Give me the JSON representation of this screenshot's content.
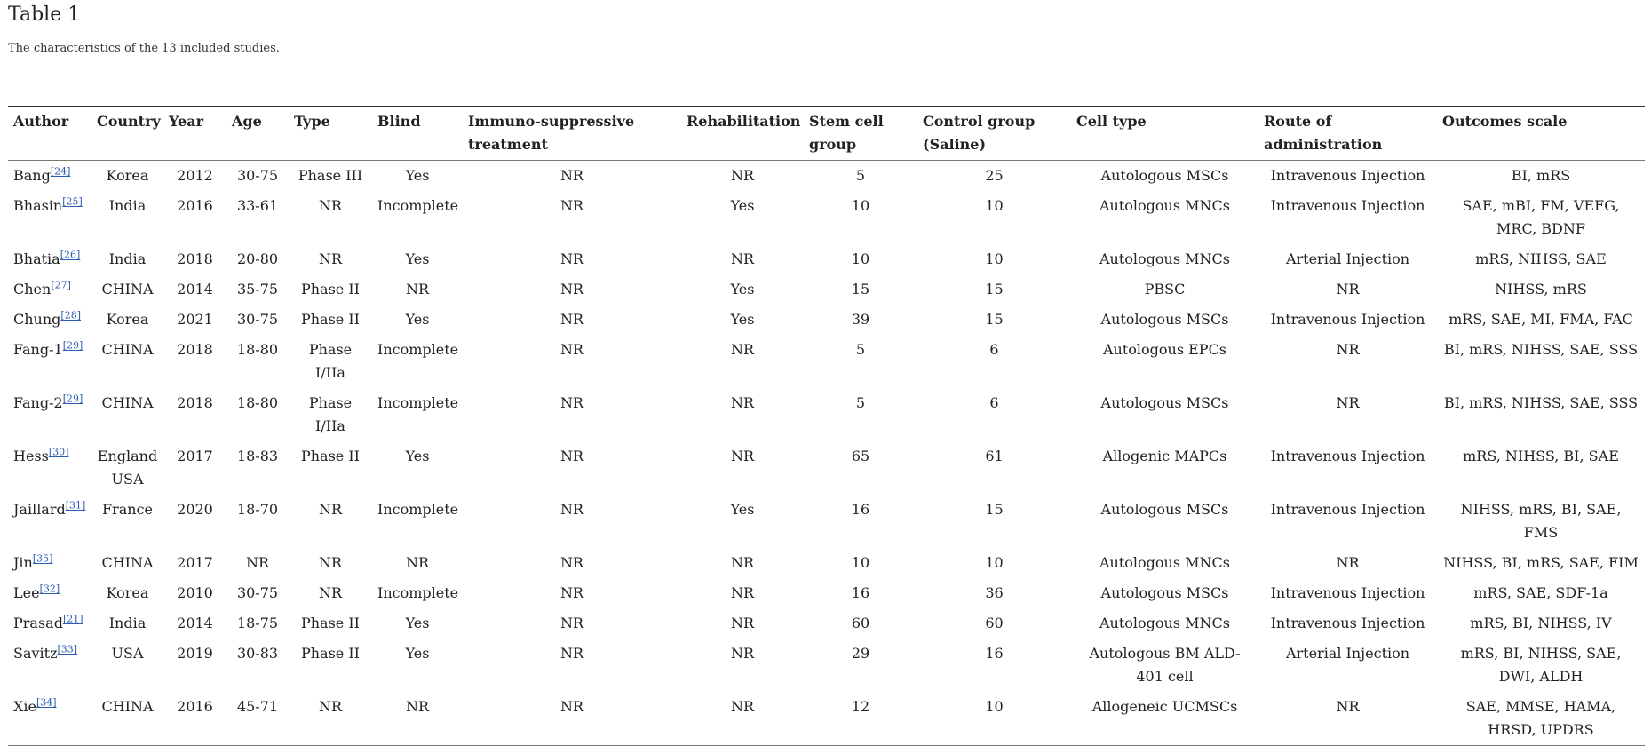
{
  "header": {
    "title": "Table 1",
    "caption": "The characteristics of the 13 included studies."
  },
  "table": {
    "columns": [
      "Author",
      "Country",
      "Year",
      "Age",
      "Type",
      "Blind",
      "Immuno-suppressive treatment",
      "Rehabilitation",
      "Stem cell group",
      "Control group (Saline)",
      "Cell type",
      "Route of administration",
      "Outcomes scale"
    ],
    "rows": [
      [
        {
          "name": "Bang",
          "ref": "[24]"
        },
        "Korea",
        "2012",
        "30-75",
        "Phase III",
        "Yes",
        "NR",
        "NR",
        "5",
        "25",
        "Autologous MSCs",
        "Intravenous Injection",
        "BI, mRS"
      ],
      [
        {
          "name": "Bhasin",
          "ref": "[25]"
        },
        "India",
        "2016",
        "33-61",
        "NR",
        "Incomplete",
        "NR",
        "Yes",
        "10",
        "10",
        "Autologous MNCs",
        "Intravenous Injection",
        "SAE, mBI, FM, VEFG, MRC, BDNF"
      ],
      [
        {
          "name": "Bhatia",
          "ref": "[26]"
        },
        "India",
        "2018",
        "20-80",
        "NR",
        "Yes",
        "NR",
        "NR",
        "10",
        "10",
        "Autologous MNCs",
        "Arterial Injection",
        "mRS, NIHSS, SAE"
      ],
      [
        {
          "name": "Chen",
          "ref": "[27]"
        },
        "CHINA",
        "2014",
        "35-75",
        "Phase II",
        "NR",
        "NR",
        "Yes",
        "15",
        "15",
        "PBSC",
        "NR",
        "NIHSS, mRS"
      ],
      [
        {
          "name": "Chung",
          "ref": "[28]"
        },
        "Korea",
        "2021",
        "30-75",
        "Phase II",
        "Yes",
        "NR",
        "Yes",
        "39",
        "15",
        "Autologous MSCs",
        "Intravenous Injection",
        "mRS, SAE, MI, FMA, FAC"
      ],
      [
        {
          "name": "Fang-1",
          "ref": "[29]"
        },
        "CHINA",
        "2018",
        "18-80",
        "Phase I/IIa",
        "Incomplete",
        "NR",
        "NR",
        "5",
        "6",
        "Autologous EPCs",
        "NR",
        "BI, mRS, NIHSS, SAE, SSS"
      ],
      [
        {
          "name": "Fang-2",
          "ref": "[29]"
        },
        "CHINA",
        "2018",
        "18-80",
        "Phase I/IIa",
        "Incomplete",
        "NR",
        "NR",
        "5",
        "6",
        "Autologous MSCs",
        "NR",
        "BI, mRS, NIHSS, SAE, SSS"
      ],
      [
        {
          "name": "Hess",
          "ref": "[30]"
        },
        "England USA",
        "2017",
        "18-83",
        "Phase II",
        "Yes",
        "NR",
        "NR",
        "65",
        "61",
        "Allogenic MAPCs",
        "Intravenous Injection",
        "mRS, NIHSS, BI, SAE"
      ],
      [
        {
          "name": "Jaillard",
          "ref": "[31]"
        },
        "France",
        "2020",
        "18-70",
        "NR",
        "Incomplete",
        "NR",
        "Yes",
        "16",
        "15",
        "Autologous MSCs",
        "Intravenous Injection",
        "NIHSS, mRS, BI, SAE, FMS"
      ],
      [
        {
          "name": "Jin",
          "ref": "[35]"
        },
        "CHINA",
        "2017",
        "NR",
        "NR",
        "NR",
        "NR",
        "NR",
        "10",
        "10",
        "Autologous MNCs",
        "NR",
        "NIHSS, BI, mRS, SAE, FIM"
      ],
      [
        {
          "name": "Lee",
          "ref": "[32]"
        },
        "Korea",
        "2010",
        "30-75",
        "NR",
        "Incomplete",
        "NR",
        "NR",
        "16",
        "36",
        "Autologous MSCs",
        "Intravenous Injection",
        "mRS, SAE, SDF-1a"
      ],
      [
        {
          "name": "Prasad",
          "ref": "[21]"
        },
        "India",
        "2014",
        "18-75",
        "Phase II",
        "Yes",
        "NR",
        "NR",
        "60",
        "60",
        "Autologous MNCs",
        "Intravenous Injection",
        "mRS, BI, NIHSS, IV"
      ],
      [
        {
          "name": "Savitz",
          "ref": "[33]"
        },
        "USA",
        "2019",
        "30-83",
        "Phase II",
        "Yes",
        "NR",
        "NR",
        "29",
        "16",
        "Autologous BM ALD-401 cell",
        "Arterial Injection",
        "mRS, BI, NIHSS, SAE, DWI, ALDH"
      ],
      [
        {
          "name": "Xie",
          "ref": "[34]"
        },
        "CHINA",
        "2016",
        "45-71",
        "NR",
        "NR",
        "NR",
        "NR",
        "12",
        "10",
        "Allogeneic UCMSCs",
        "NR",
        "SAE, MMSE, HAMA, HRSD, UPDRS"
      ]
    ]
  }
}
